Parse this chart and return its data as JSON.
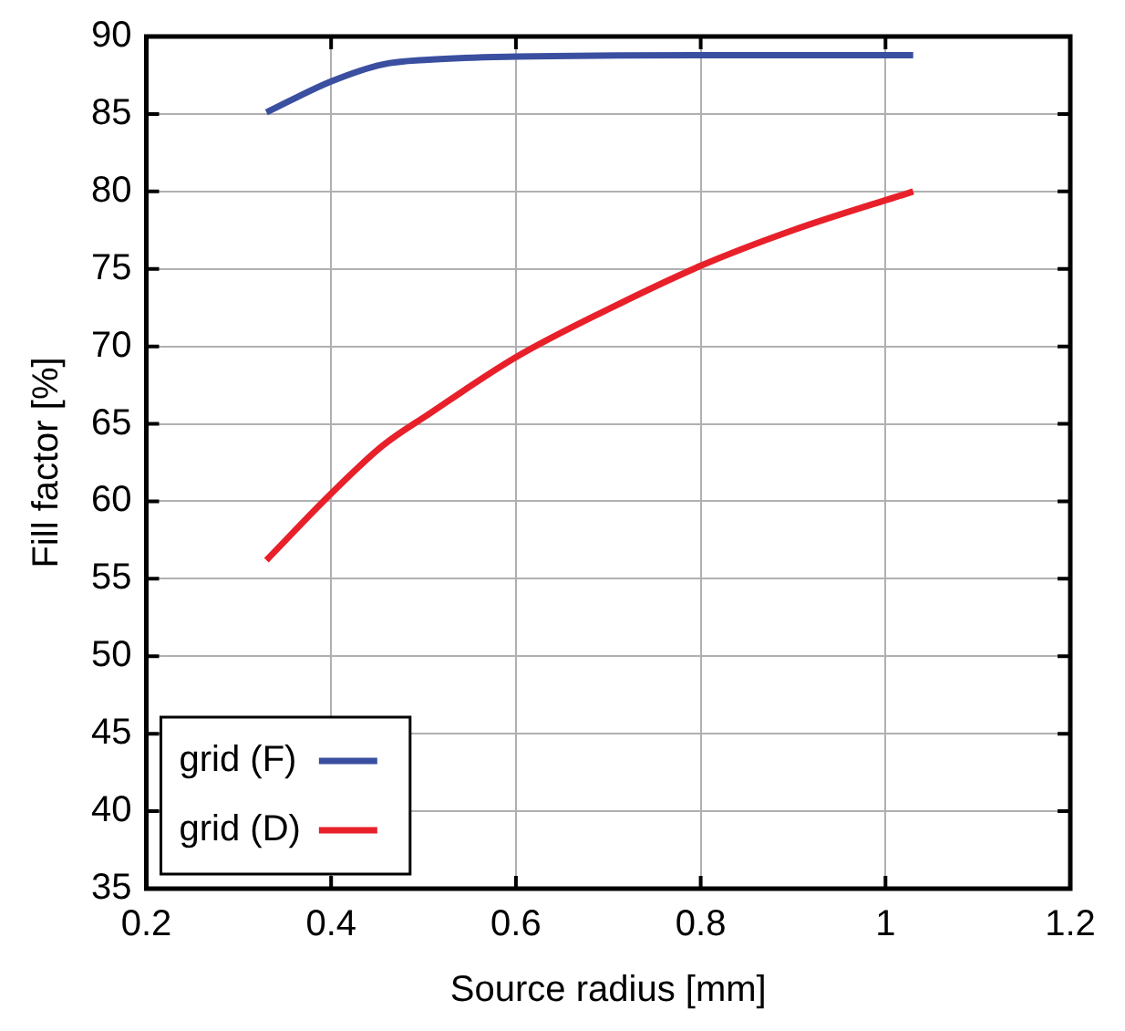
{
  "chart_data": {
    "type": "line",
    "xlabel": "Source radius [mm]",
    "ylabel": "Fill factor [%]",
    "xlim": [
      0.2,
      1.2
    ],
    "xticks": [
      0.2,
      0.4,
      0.6,
      0.8,
      1,
      1.2
    ],
    "ylim": [
      35,
      90
    ],
    "yticks": [
      35,
      40,
      45,
      50,
      55,
      60,
      65,
      70,
      75,
      80,
      85,
      90
    ],
    "grid": true,
    "legend": "bottom left",
    "marker": "none",
    "line_style": "solid",
    "series": [
      {
        "name": "grid (F)",
        "color": "#3a4fa0",
        "x": [
          0.33,
          0.4,
          0.456,
          0.505,
          0.6,
          0.8,
          1.03
        ],
        "values": [
          85.1,
          87.1,
          88.2,
          88.5,
          88.7,
          88.8,
          88.8
        ]
      },
      {
        "name": "grid (D)",
        "color": "#e8202a",
        "x": [
          0.33,
          0.4,
          0.456,
          0.505,
          0.6,
          0.7,
          0.8,
          0.9,
          1.03
        ],
        "values": [
          56.2,
          60.5,
          63.6,
          65.6,
          69.3,
          72.4,
          75.2,
          77.5,
          80.0
        ]
      }
    ]
  }
}
